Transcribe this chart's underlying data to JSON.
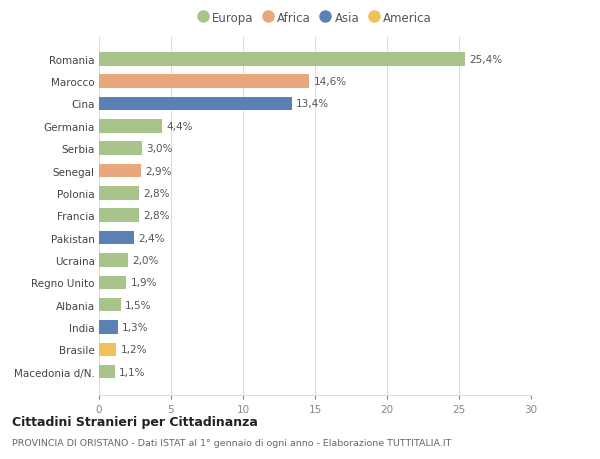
{
  "categories": [
    "Romania",
    "Marocco",
    "Cina",
    "Germania",
    "Serbia",
    "Senegal",
    "Polonia",
    "Francia",
    "Pakistan",
    "Ucraina",
    "Regno Unito",
    "Albania",
    "India",
    "Brasile",
    "Macedonia d/N."
  ],
  "values": [
    25.4,
    14.6,
    13.4,
    4.4,
    3.0,
    2.9,
    2.8,
    2.8,
    2.4,
    2.0,
    1.9,
    1.5,
    1.3,
    1.2,
    1.1
  ],
  "labels": [
    "25,4%",
    "14,6%",
    "13,4%",
    "4,4%",
    "3,0%",
    "2,9%",
    "2,8%",
    "2,8%",
    "2,4%",
    "2,0%",
    "1,9%",
    "1,5%",
    "1,3%",
    "1,2%",
    "1,1%"
  ],
  "continent": [
    "Europa",
    "Africa",
    "Asia",
    "Europa",
    "Europa",
    "Africa",
    "Europa",
    "Europa",
    "Asia",
    "Europa",
    "Europa",
    "Europa",
    "Asia",
    "America",
    "Europa"
  ],
  "colors": {
    "Europa": "#a8c48a",
    "Africa": "#e8a87c",
    "Asia": "#5b80b4",
    "America": "#f0c05a"
  },
  "legend_order": [
    "Europa",
    "Africa",
    "Asia",
    "America"
  ],
  "xlim": [
    0,
    30
  ],
  "xticks": [
    0,
    5,
    10,
    15,
    20,
    25,
    30
  ],
  "title": "Cittadini Stranieri per Cittadinanza",
  "subtitle": "PROVINCIA DI ORISTANO - Dati ISTAT al 1° gennaio di ogni anno - Elaborazione TUTTITALIA.IT",
  "background_color": "#ffffff",
  "grid_color": "#dddddd",
  "bar_height": 0.6
}
